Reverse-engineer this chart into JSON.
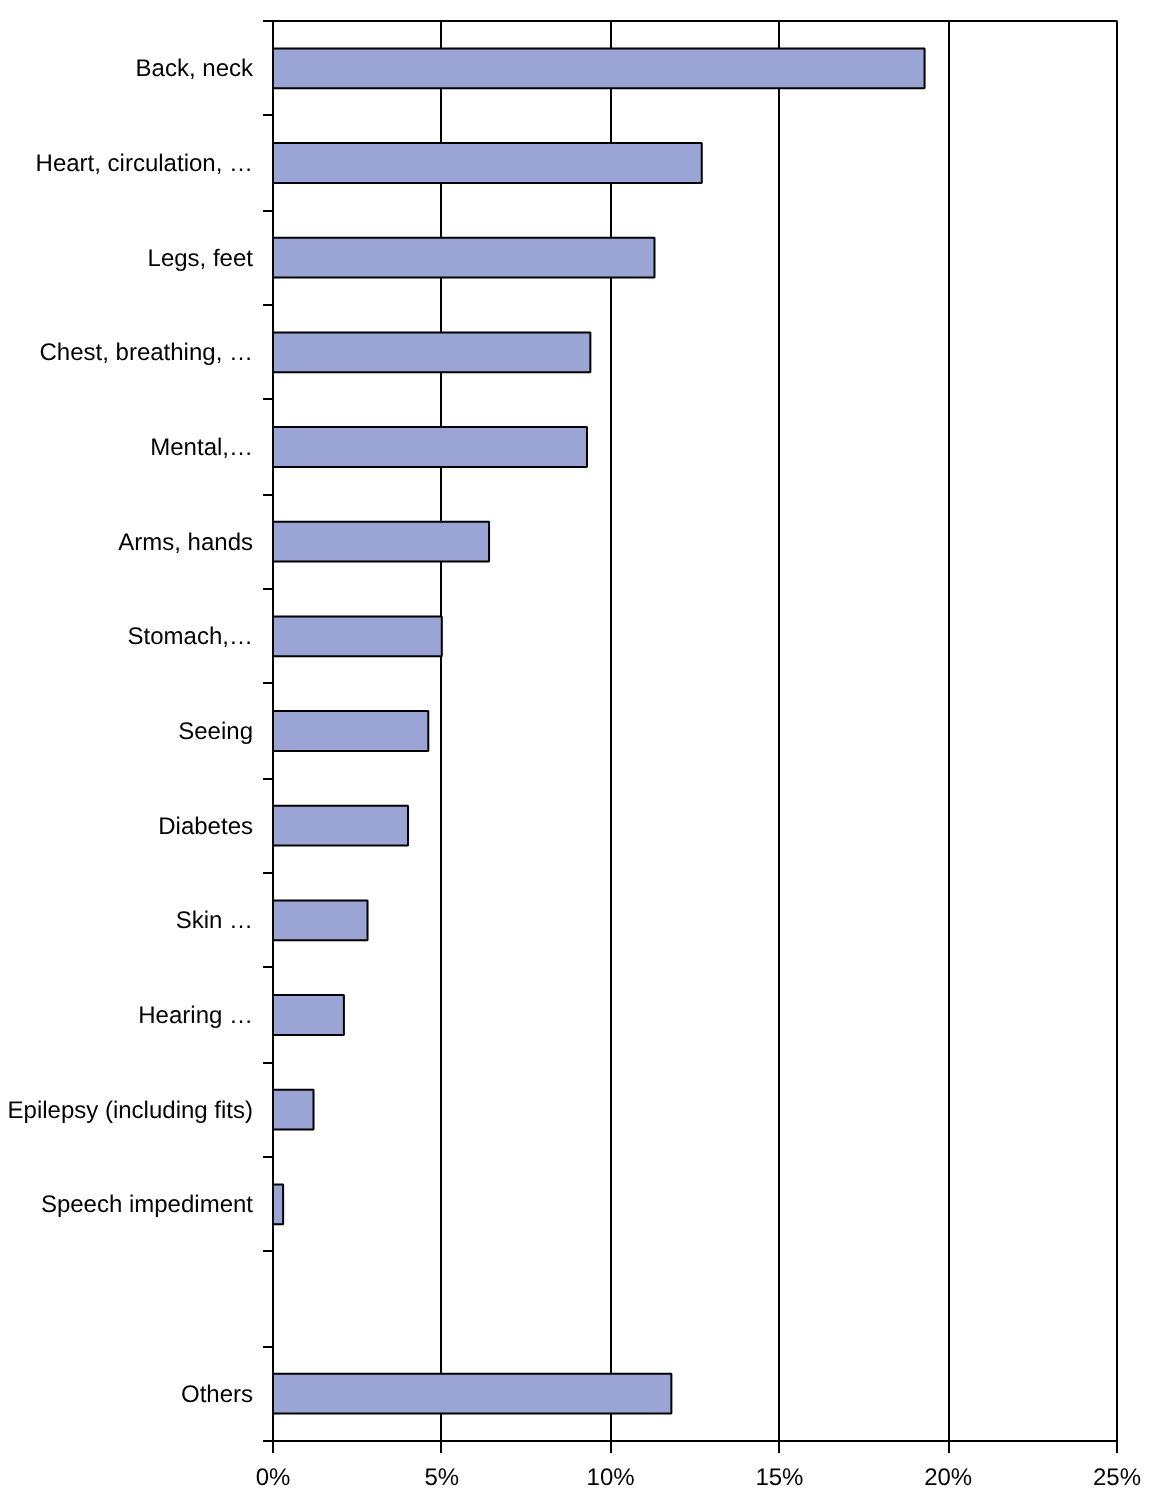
{
  "chart_data": {
    "type": "bar",
    "orientation": "horizontal",
    "categories": [
      "Back, neck",
      "Heart, circulation, …",
      "Legs, feet",
      "Chest, breathing, …",
      "Mental,…",
      "Arms, hands",
      "Stomach,…",
      "Seeing",
      "Diabetes",
      "Skin …",
      "Hearing …",
      "Epilepsy (including fits)",
      "Speech impediment",
      null,
      "Others"
    ],
    "values": [
      19.3,
      12.7,
      11.3,
      9.4,
      9.3,
      6.4,
      5.0,
      4.6,
      4.0,
      2.8,
      2.1,
      1.2,
      0.3,
      null,
      11.8
    ],
    "color": "#9aa5d6",
    "xlim": [
      0,
      25
    ],
    "xticks": [
      {
        "value": 0,
        "label": "0%"
      },
      {
        "value": 5,
        "label": "5%"
      },
      {
        "value": 10,
        "label": "10%"
      },
      {
        "value": 15,
        "label": "15%"
      },
      {
        "value": 20,
        "label": "20%"
      },
      {
        "value": 25,
        "label": "25%"
      }
    ],
    "grid": "x"
  }
}
